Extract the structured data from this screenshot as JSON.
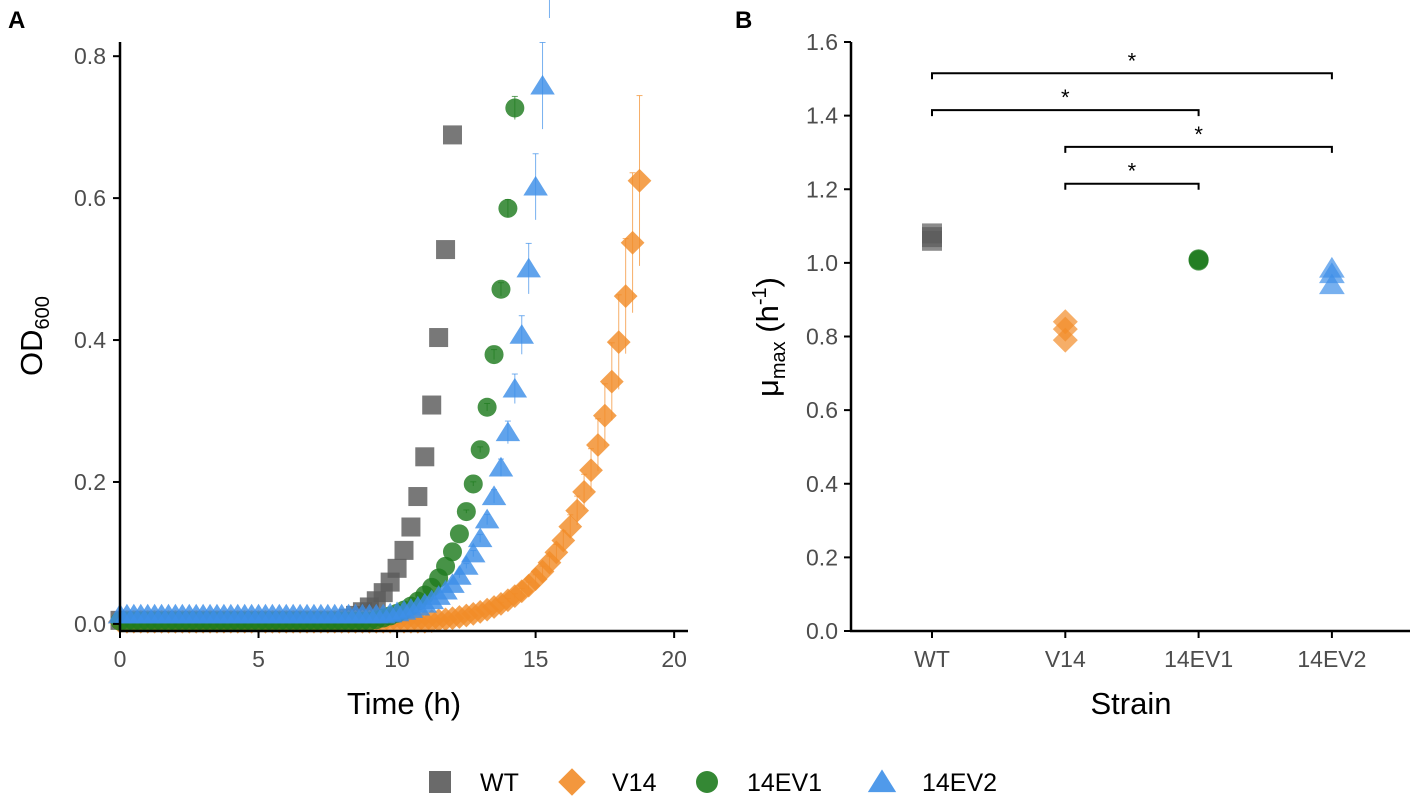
{
  "chart_data": [
    {
      "panel": "A",
      "type": "scatter",
      "xlabel": "Time (h)",
      "ylabel_main": "OD",
      "ylabel_sub": "600",
      "xlim": [
        0,
        20.5
      ],
      "ylim": [
        -0.01,
        0.82
      ],
      "xticks": [
        0,
        5,
        10,
        15,
        20
      ],
      "xtick_labels": [
        "0",
        "5",
        "10",
        "15",
        "20"
      ],
      "yticks": [
        0.0,
        0.2,
        0.4,
        0.6,
        0.8
      ],
      "ytick_labels": [
        "0.0",
        "0.2",
        "0.4",
        "0.6",
        "0.8"
      ],
      "series": [
        {
          "name": "WT",
          "growth": {
            "base": 0.005,
            "t0": 8.0,
            "a": 0.01,
            "k": 1.06,
            "t_end": 14.5,
            "dt": 0.25
          },
          "err": 0.03
        },
        {
          "name": "V14",
          "growth": {
            "base": 0.003,
            "t0": 11.0,
            "a": 0.006,
            "k": 0.6,
            "t_end": 18.75,
            "dt": 0.25
          },
          "err": 0.12
        },
        {
          "name": "14EV1",
          "growth": {
            "base": 0.004,
            "t0": 9.0,
            "a": 0.008,
            "k": 0.86,
            "t_end": 15.25,
            "dt": 0.25
          },
          "err": 0.05
        },
        {
          "name": "14EV2",
          "growth": {
            "base": 0.013,
            "t0": 9.5,
            "a": 0.006,
            "k": 0.84,
            "t_end": 15.5,
            "dt": 0.25
          },
          "err": 0.08
        }
      ]
    },
    {
      "panel": "B",
      "type": "scatter",
      "xlabel": "Strain",
      "ylabel_main": "μ",
      "ylabel_sub": "max",
      "ylabel_tail": " (h",
      "ylabel_sup": "-1",
      "ylabel_close": ")",
      "ylim": [
        0.0,
        1.6
      ],
      "yticks": [
        0.0,
        0.2,
        0.4,
        0.6,
        0.8,
        1.0,
        1.2,
        1.4,
        1.6
      ],
      "ytick_labels": [
        "0.0",
        "0.2",
        "0.4",
        "0.6",
        "0.8",
        "1.0",
        "1.2",
        "1.4",
        "1.6"
      ],
      "categories": [
        "WT",
        "V14",
        "14EV1",
        "14EV2"
      ],
      "points": [
        {
          "strain": "WT",
          "values": [
            1.06,
            1.08,
            1.07
          ]
        },
        {
          "strain": "V14",
          "values": [
            0.79,
            0.82,
            0.84
          ]
        },
        {
          "strain": "14EV1",
          "values": [
            1.008,
            1.01,
            1.006
          ]
        },
        {
          "strain": "14EV2",
          "values": [
            0.94,
            0.97,
            0.985
          ]
        }
      ],
      "significance": [
        {
          "from": "WT",
          "to": "14EV2",
          "y": 1.515,
          "label": "*"
        },
        {
          "from": "WT",
          "to": "14EV1",
          "y": 1.415,
          "label": "*"
        },
        {
          "from": "V14",
          "to": "14EV2",
          "y": 1.315,
          "label": "*"
        },
        {
          "from": "V14",
          "to": "14EV1",
          "y": 1.215,
          "label": "*"
        }
      ]
    }
  ],
  "legend": [
    {
      "name": "WT"
    },
    {
      "name": "V14"
    },
    {
      "name": "14EV1"
    },
    {
      "name": "14EV2"
    }
  ],
  "colors": {
    "WT": "#5a5a5a",
    "V14": "#f28c28",
    "14EV1": "#1e7b1e",
    "14EV2": "#3d8fe8",
    "axis": "#000000"
  },
  "markers": {
    "WT": "square",
    "V14": "diamond",
    "14EV1": "circle",
    "14EV2": "triangle"
  }
}
